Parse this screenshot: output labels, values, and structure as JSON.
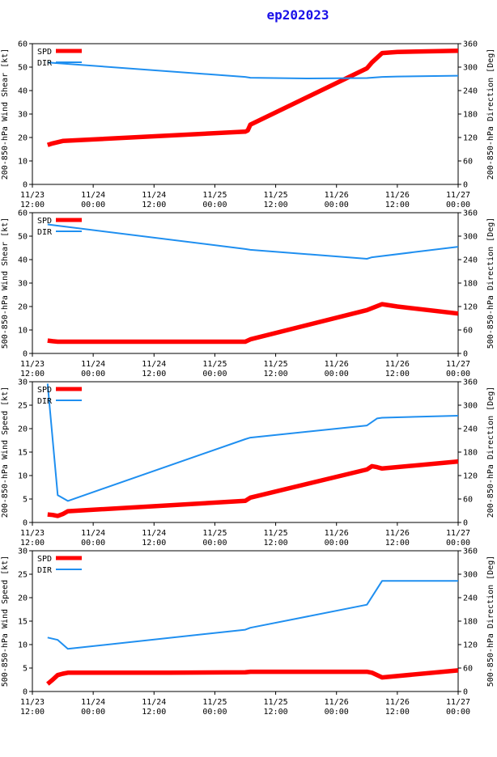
{
  "title": "ep202023",
  "time_ticks": [
    "11/23\n12:00",
    "11/24\n00:00",
    "11/24\n12:00",
    "11/25\n00:00",
    "11/25\n12:00",
    "11/26\n00:00",
    "11/26\n12:00",
    "11/27\n00:00"
  ],
  "legend": {
    "spd": "SPD",
    "dir": "DIR"
  },
  "colors": {
    "spd": "#ff0000",
    "dir": "#1f8ff0"
  },
  "chart_data": [
    {
      "type": "line",
      "ylabel": "200-850-hPa Wind Shear [kt]",
      "y2label": "200-850-hPa Direction [Deg]",
      "x_range": [
        0,
        84
      ],
      "ylim": [
        0,
        60
      ],
      "yticks": [
        0,
        10,
        20,
        30,
        40,
        50,
        60
      ],
      "y2lim": [
        0,
        360
      ],
      "y2ticks": [
        0,
        60,
        120,
        180,
        240,
        300,
        360
      ],
      "series": [
        {
          "name": "SPD",
          "axis": "left",
          "x": [
            3,
            4,
            6,
            42,
            42.5,
            43,
            66,
            67,
            69,
            72,
            84
          ],
          "y": [
            16.8,
            17.5,
            18.5,
            22.5,
            23,
            25.5,
            49.5,
            52,
            56,
            56.5,
            57
          ]
        },
        {
          "name": "DIR",
          "axis": "right",
          "x": [
            3,
            42,
            43,
            54,
            66,
            69,
            72,
            84
          ],
          "y": [
            312,
            275,
            273,
            271,
            272,
            275,
            276,
            278
          ]
        }
      ]
    },
    {
      "type": "line",
      "ylabel": "500-850-hPa Wind Shear [kt]",
      "y2label": "500-850-hPa Direction [Deg]",
      "x_range": [
        0,
        84
      ],
      "ylim": [
        0,
        60
      ],
      "yticks": [
        0,
        10,
        20,
        30,
        40,
        50,
        60
      ],
      "y2lim": [
        0,
        360
      ],
      "y2ticks": [
        0,
        60,
        120,
        180,
        240,
        300,
        360
      ],
      "series": [
        {
          "name": "SPD",
          "axis": "left",
          "x": [
            3,
            4,
            5,
            6,
            27,
            42,
            43,
            66,
            69,
            72,
            84
          ],
          "y": [
            5.5,
            5.2,
            5,
            5,
            5,
            5,
            6,
            18.5,
            21,
            20,
            17
          ]
        },
        {
          "name": "DIR",
          "axis": "right",
          "x": [
            3,
            42,
            43,
            66,
            67,
            84
          ],
          "y": [
            330,
            267,
            265,
            242,
            246,
            273
          ]
        }
      ]
    },
    {
      "type": "line",
      "ylabel": "200-850-hPa Wind Speed [kt]",
      "y2label": "200-850-hPa Direction [Deg]",
      "x_range": [
        0,
        84
      ],
      "ylim": [
        0,
        30
      ],
      "yticks": [
        0,
        5,
        10,
        15,
        20,
        25,
        30
      ],
      "y2lim": [
        0,
        360
      ],
      "y2ticks": [
        0,
        60,
        120,
        180,
        240,
        300,
        360
      ],
      "series": [
        {
          "name": "SPD",
          "axis": "left",
          "x": [
            3,
            4,
            5,
            6,
            7,
            42,
            43,
            66,
            67,
            68,
            69,
            84
          ],
          "y": [
            1.7,
            1.6,
            1.4,
            1.8,
            2.4,
            4.6,
            5.3,
            11.3,
            12,
            11.8,
            11.5,
            13
          ]
        },
        {
          "name": "DIR",
          "axis": "right",
          "x": [
            3,
            5,
            7,
            42,
            43,
            66,
            68,
            69,
            84
          ],
          "y": [
            355,
            70,
            55,
            213,
            217,
            248,
            266,
            268,
            273
          ]
        }
      ]
    },
    {
      "type": "line",
      "ylabel": "500-850-hPa Wind Speed [kt]",
      "y2label": "500-850-hPa Direction [Deg]",
      "x_range": [
        0,
        84
      ],
      "ylim": [
        0,
        30
      ],
      "yticks": [
        0,
        5,
        10,
        15,
        20,
        25,
        30
      ],
      "y2lim": [
        0,
        360
      ],
      "y2ticks": [
        0,
        60,
        120,
        180,
        240,
        300,
        360
      ],
      "series": [
        {
          "name": "SPD",
          "axis": "left",
          "x": [
            3,
            4,
            5,
            6,
            7,
            27,
            42,
            43,
            66,
            67,
            69,
            84
          ],
          "y": [
            1.6,
            2.5,
            3.5,
            3.8,
            4,
            4,
            4.1,
            4.2,
            4.2,
            4.0,
            3.0,
            4.5
          ]
        },
        {
          "name": "DIR",
          "axis": "right",
          "x": [
            3,
            5,
            7,
            42,
            43,
            66,
            69,
            84
          ],
          "y": [
            138,
            132,
            109,
            158,
            163,
            222,
            283,
            283
          ]
        }
      ]
    }
  ]
}
